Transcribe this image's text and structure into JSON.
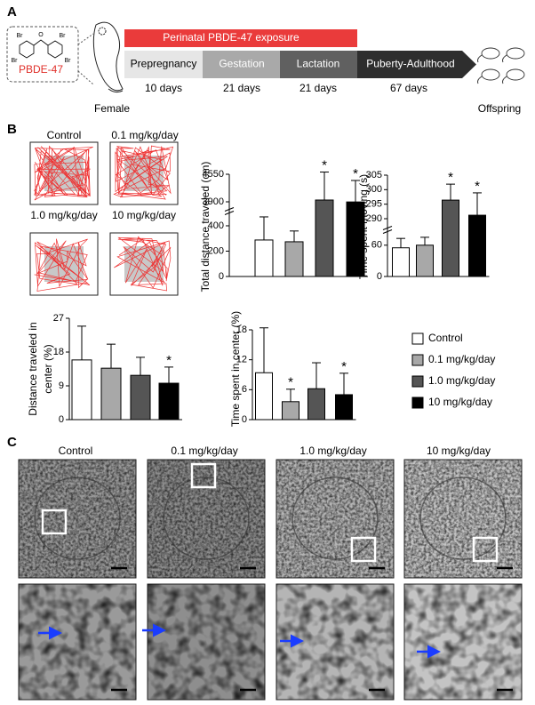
{
  "panel_a": {
    "label": "A",
    "exposure": "Perinatal PBDE-47 exposure",
    "compound": "PBDE-47",
    "atoms": [
      "Br",
      "Br",
      "Br",
      "Br",
      "O"
    ],
    "stages": [
      "Prepregnancy",
      "Gestation",
      "Lactation",
      "Puberty-Adulthood"
    ],
    "durations": [
      "10 days",
      "21 days",
      "21 days",
      "67 days"
    ],
    "female": "Female",
    "offspring": "Offspring"
  },
  "panel_b": {
    "label": "B",
    "tracks": [
      "Control",
      "0.1 mg/kg/day",
      "1.0 mg/kg/day",
      "10 mg/kg/day"
    ],
    "legend": [
      "Control",
      "0.1 mg/kg/day",
      "1.0 mg/kg/day",
      "10 mg/kg/day"
    ]
  },
  "chart_data": [
    {
      "type": "bar",
      "ylabel": [
        "Total distance  traveled (cm)"
      ],
      "ylim": [
        0,
        4550
      ],
      "ybreak": [
        470,
        3900
      ],
      "yticks": [
        0,
        200,
        400,
        3900,
        4550
      ],
      "values": [
        288,
        274,
        3942,
        3870
      ],
      "errors": [
        190,
        85,
        660,
        533
      ],
      "significance": [
        null,
        null,
        "*",
        "*"
      ],
      "colors": [
        "#ffffff",
        "#a8a8a8",
        "#555555",
        "#000000"
      ]
    },
    {
      "type": "bar",
      "ylabel": [
        "Time spent moving (s)"
      ],
      "ylim": [
        0,
        305
      ],
      "ybreak": [
        75,
        290
      ],
      "yticks": [
        0,
        60,
        290,
        295,
        300,
        305
      ],
      "values": [
        55,
        60,
        296.4,
        291.2
      ],
      "errors": [
        18,
        16,
        5.5,
        7.7
      ],
      "significance": [
        null,
        null,
        "*",
        "*"
      ],
      "colors": [
        "#ffffff",
        "#a8a8a8",
        "#555555",
        "#000000"
      ]
    },
    {
      "type": "bar",
      "ylabel": [
        "Distance traveled in",
        "center (%)"
      ],
      "ylim": [
        0,
        27
      ],
      "yticks": [
        0,
        9,
        18,
        27
      ],
      "values": [
        15.9,
        13.7,
        11.8,
        9.7
      ],
      "errors": [
        9,
        6.4,
        4.8,
        4.3
      ],
      "significance": [
        null,
        null,
        null,
        "*"
      ],
      "colors": [
        "#ffffff",
        "#a8a8a8",
        "#555555",
        "#000000"
      ]
    },
    {
      "type": "bar",
      "ylabel": [
        "Time spent in center (%)"
      ],
      "ylim": [
        0,
        18
      ],
      "yticks": [
        0,
        6,
        12,
        18
      ],
      "values": [
        9.4,
        3.6,
        6.2,
        5
      ],
      "errors": [
        9,
        2.5,
        5.2,
        4.3
      ],
      "significance": [
        null,
        "*",
        null,
        "*"
      ],
      "colors": [
        "#ffffff",
        "#a8a8a8",
        "#555555",
        "#000000"
      ]
    }
  ],
  "panel_c": {
    "label": "C",
    "groups": [
      "Control",
      "0.1 mg/kg/day",
      "1.0 mg/kg/day",
      "10 mg/kg/day"
    ]
  }
}
